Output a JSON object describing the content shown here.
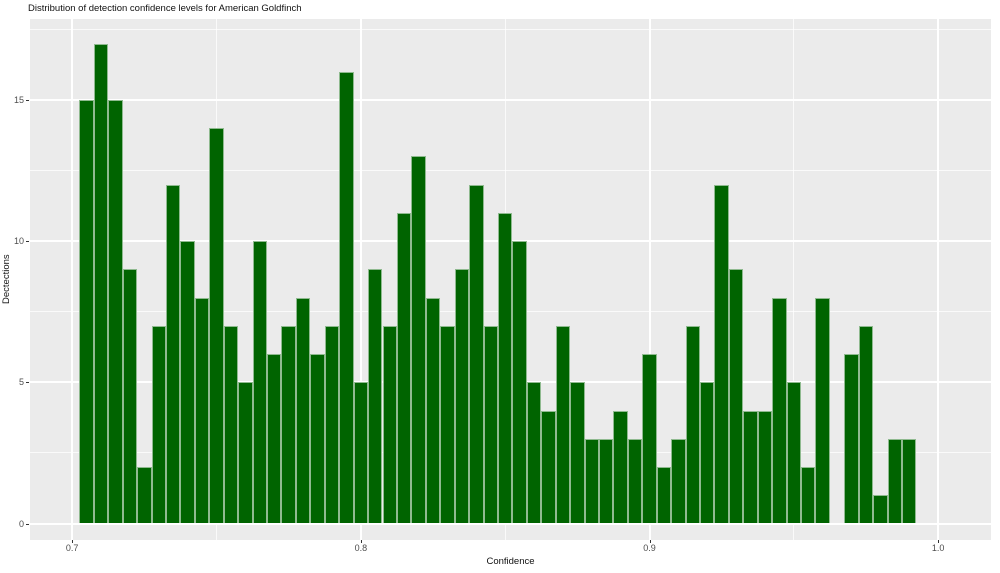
{
  "chart_data": {
    "type": "bar",
    "subtype": "histogram",
    "title": "Distribution of detection confidence levels for American Goldfinch",
    "xlabel": "Confidence",
    "ylabel": "Dectections",
    "bin_width": 0.005,
    "bin_centers": [
      0.705,
      0.71,
      0.715,
      0.72,
      0.725,
      0.73,
      0.735,
      0.74,
      0.745,
      0.75,
      0.755,
      0.76,
      0.765,
      0.77,
      0.775,
      0.78,
      0.785,
      0.79,
      0.795,
      0.8,
      0.805,
      0.81,
      0.815,
      0.82,
      0.825,
      0.83,
      0.835,
      0.84,
      0.845,
      0.85,
      0.855,
      0.86,
      0.865,
      0.87,
      0.875,
      0.88,
      0.885,
      0.89,
      0.895,
      0.9,
      0.905,
      0.91,
      0.915,
      0.92,
      0.925,
      0.93,
      0.935,
      0.94,
      0.945,
      0.95,
      0.955,
      0.96,
      0.965,
      0.97,
      0.975,
      0.98,
      0.985,
      0.99
    ],
    "counts": [
      15,
      17,
      15,
      9,
      2,
      7,
      12,
      10,
      8,
      14,
      7,
      5,
      10,
      6,
      7,
      8,
      6,
      7,
      16,
      5,
      9,
      7,
      11,
      13,
      8,
      7,
      9,
      12,
      7,
      11,
      10,
      5,
      4,
      7,
      5,
      3,
      3,
      4,
      3,
      6,
      2,
      3,
      7,
      5,
      12,
      9,
      4,
      4,
      8,
      5,
      2,
      8,
      0,
      6,
      7,
      1,
      3,
      3
    ],
    "x_ticks": [
      0.7,
      0.8,
      0.9,
      1.0
    ],
    "x_tick_labels": [
      "0.7",
      "0.8",
      "0.9",
      "1.0"
    ],
    "x_minor_ticks": [
      0.75,
      0.85,
      0.95
    ],
    "y_ticks": [
      0,
      5,
      10,
      15
    ],
    "y_tick_labels": [
      "0",
      "5",
      "10",
      "15"
    ],
    "y_minor_ticks": [
      2.5,
      7.5,
      12.5,
      17.5
    ],
    "xlim": [
      0.685,
      1.018
    ],
    "ylim": [
      -0.65,
      17.85
    ],
    "grid": true,
    "legend": false,
    "colors": {
      "bar_fill": "#006400",
      "bar_edge": "#8fba8f",
      "panel_bg": "#EBEBEB",
      "grid": "#FFFFFF",
      "tick_text": "#4D4D4D",
      "text": "#111111"
    }
  }
}
